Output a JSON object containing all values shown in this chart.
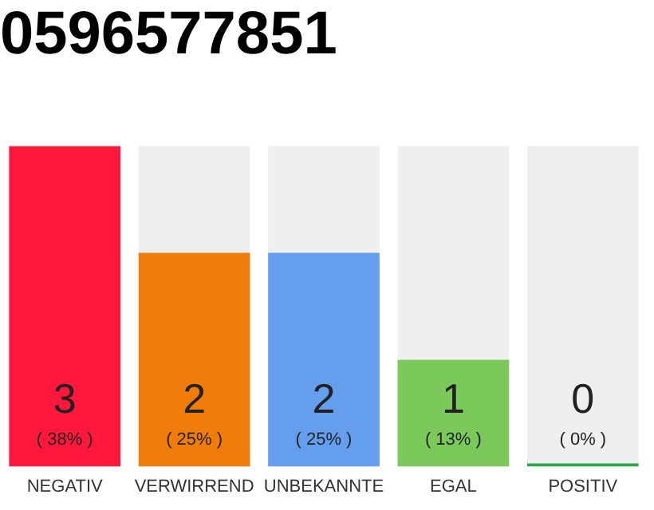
{
  "chart_data": {
    "type": "bar",
    "title": "0596577851",
    "categories": [
      "NEGATIV",
      "VERWIRREND",
      "UNBEKANNTE",
      "EGAL",
      "POSITIV"
    ],
    "values": [
      3,
      2,
      2,
      1,
      0
    ],
    "colors": [
      "#ff173c",
      "#f07d0a",
      "#659eec",
      "#7bc95a",
      "#2aa94a"
    ],
    "value_labels": [
      "3\n( 38% )",
      "2\n( 25% )",
      "2\n( 25% )",
      "1\n( 13% )",
      "0\n( 0% )"
    ],
    "grid": false,
    "legend": false
  }
}
